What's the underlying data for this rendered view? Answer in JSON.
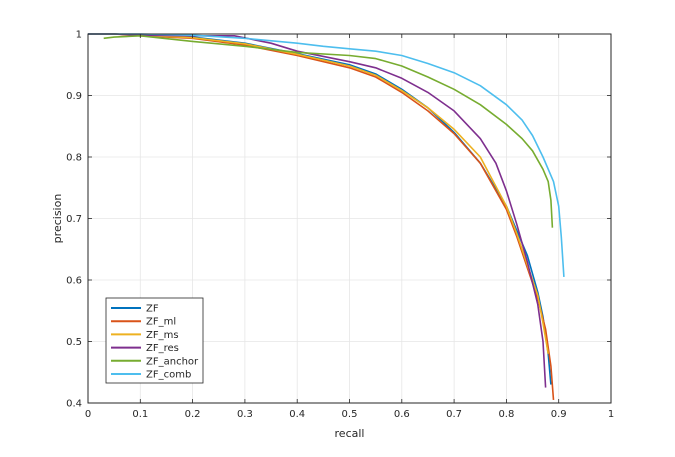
{
  "chart_data": {
    "type": "line",
    "title": "",
    "xlabel": "recall",
    "ylabel": "precision",
    "xlim": [
      0,
      1
    ],
    "ylim": [
      0.4,
      1
    ],
    "xticks": [
      "0",
      "0.1",
      "0.2",
      "0.3",
      "0.4",
      "0.5",
      "0.6",
      "0.7",
      "0.8",
      "0.9",
      "1"
    ],
    "yticks": [
      "0.4",
      "0.5",
      "0.6",
      "0.7",
      "0.8",
      "0.9",
      "1"
    ],
    "grid": true,
    "legend_position": "bottom-left",
    "series": [
      {
        "name": "ZF",
        "color": "#0072BD",
        "x": [
          0.0,
          0.05,
          0.1,
          0.2,
          0.3,
          0.4,
          0.5,
          0.55,
          0.6,
          0.65,
          0.7,
          0.75,
          0.8,
          0.82,
          0.84,
          0.86,
          0.87,
          0.88,
          0.885
        ],
        "y": [
          1.0,
          1.0,
          0.998,
          0.995,
          0.985,
          0.968,
          0.95,
          0.935,
          0.91,
          0.88,
          0.84,
          0.79,
          0.72,
          0.68,
          0.64,
          0.58,
          0.54,
          0.48,
          0.43
        ]
      },
      {
        "name": "ZF_ml",
        "color": "#D95319",
        "x": [
          0.0,
          0.05,
          0.1,
          0.2,
          0.3,
          0.4,
          0.5,
          0.55,
          0.6,
          0.65,
          0.7,
          0.75,
          0.8,
          0.82,
          0.84,
          0.86,
          0.875,
          0.885,
          0.89
        ],
        "y": [
          1.0,
          1.0,
          0.997,
          0.993,
          0.982,
          0.965,
          0.945,
          0.93,
          0.905,
          0.875,
          0.838,
          0.79,
          0.715,
          0.67,
          0.62,
          0.57,
          0.52,
          0.46,
          0.405
        ]
      },
      {
        "name": "ZF_ms",
        "color": "#EDB120",
        "x": [
          0.0,
          0.05,
          0.1,
          0.2,
          0.3,
          0.4,
          0.5,
          0.55,
          0.6,
          0.65,
          0.7,
          0.75,
          0.8,
          0.82,
          0.84,
          0.86,
          0.87,
          0.88
        ],
        "y": [
          1.0,
          1.0,
          0.998,
          0.994,
          0.984,
          0.967,
          0.948,
          0.933,
          0.908,
          0.88,
          0.845,
          0.8,
          0.72,
          0.675,
          0.625,
          0.575,
          0.53,
          0.48
        ]
      },
      {
        "name": "ZF_res",
        "color": "#7E2F8E",
        "x": [
          0.0,
          0.05,
          0.1,
          0.2,
          0.28,
          0.35,
          0.4,
          0.5,
          0.55,
          0.6,
          0.65,
          0.7,
          0.75,
          0.78,
          0.8,
          0.82,
          0.84,
          0.86,
          0.87,
          0.875
        ],
        "y": [
          1.0,
          1.0,
          0.998,
          0.997,
          0.997,
          0.985,
          0.972,
          0.955,
          0.945,
          0.928,
          0.905,
          0.875,
          0.83,
          0.79,
          0.745,
          0.69,
          0.63,
          0.56,
          0.5,
          0.425
        ]
      },
      {
        "name": "ZF_anchor",
        "color": "#77AC30",
        "x": [
          0.03,
          0.05,
          0.1,
          0.2,
          0.3,
          0.4,
          0.5,
          0.55,
          0.6,
          0.65,
          0.7,
          0.75,
          0.8,
          0.83,
          0.85,
          0.87,
          0.88,
          0.885,
          0.888
        ],
        "y": [
          0.993,
          0.995,
          0.997,
          0.988,
          0.98,
          0.97,
          0.965,
          0.96,
          0.948,
          0.93,
          0.91,
          0.885,
          0.853,
          0.83,
          0.81,
          0.78,
          0.76,
          0.73,
          0.685
        ]
      },
      {
        "name": "ZF_comb",
        "color": "#4DBEEE",
        "x": [
          0.0,
          0.05,
          0.1,
          0.2,
          0.3,
          0.4,
          0.45,
          0.5,
          0.55,
          0.6,
          0.65,
          0.7,
          0.75,
          0.8,
          0.83,
          0.85,
          0.87,
          0.89,
          0.9,
          0.905,
          0.91
        ],
        "y": [
          1.0,
          1.0,
          1.0,
          0.998,
          0.993,
          0.985,
          0.98,
          0.976,
          0.972,
          0.965,
          0.952,
          0.937,
          0.916,
          0.885,
          0.86,
          0.835,
          0.8,
          0.76,
          0.72,
          0.67,
          0.605
        ]
      }
    ]
  }
}
